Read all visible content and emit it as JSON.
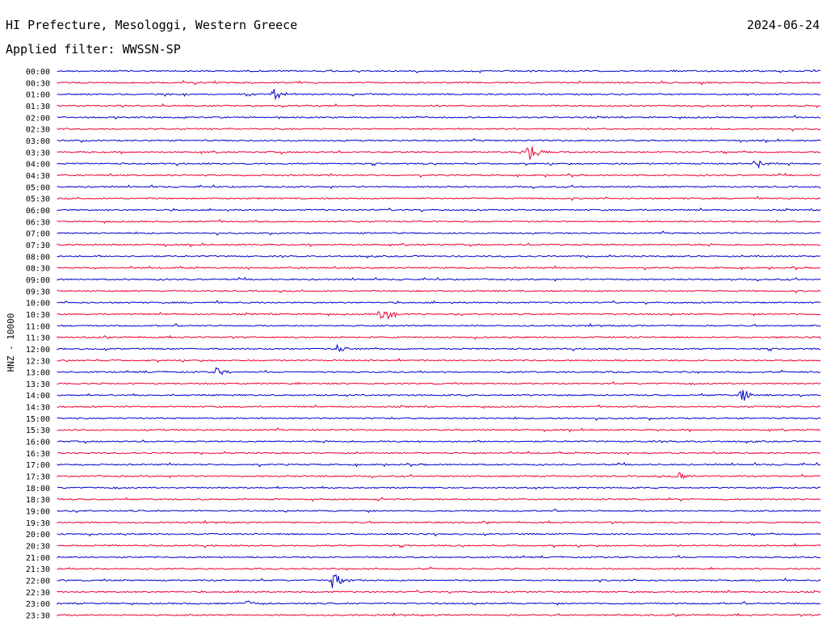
{
  "header": {
    "station": "HI Prefecture, Mesologgi, Western Greece",
    "date": "2024-06-24",
    "filter": "Applied filter: WWSSN-SP"
  },
  "chart_data": {
    "type": "line",
    "title": "HI Prefecture, Mesologgi, Western Greece",
    "subtitle": "Applied filter: WWSSN-SP",
    "ylabel": "HNZ - 10000",
    "series_colors": [
      "#0000cc",
      "#ee0033"
    ],
    "categories": [
      "00:00",
      "00:30",
      "01:00",
      "01:30",
      "02:00",
      "02:30",
      "03:00",
      "03:30",
      "04:00",
      "04:30",
      "05:00",
      "05:30",
      "06:00",
      "06:30",
      "07:00",
      "07:30",
      "08:00",
      "08:30",
      "09:00",
      "09:30",
      "10:00",
      "10:30",
      "11:00",
      "11:30",
      "12:00",
      "12:30",
      "13:00",
      "13:30",
      "14:00",
      "14:30",
      "15:00",
      "15:30",
      "16:00",
      "16:30",
      "17:00",
      "17:30",
      "18:00",
      "18:30",
      "19:00",
      "19:30",
      "20:00",
      "20:30",
      "21:00",
      "21:30",
      "22:00",
      "22:30",
      "23:00",
      "23:30"
    ],
    "events": [
      {
        "row": "01:00",
        "minute": 8.5,
        "amplitude": 9
      },
      {
        "row": "03:30",
        "minute": 18.5,
        "amplitude": 14
      },
      {
        "row": "04:00",
        "minute": 27.4,
        "amplitude": 9
      },
      {
        "row": "10:30",
        "minute": 12.7,
        "amplitude": 15
      },
      {
        "row": "12:00",
        "minute": 11.0,
        "amplitude": 6
      },
      {
        "row": "13:00",
        "minute": 6.2,
        "amplitude": 6
      },
      {
        "row": "14:00",
        "minute": 26.9,
        "amplitude": 10
      },
      {
        "row": "17:30",
        "minute": 24.4,
        "amplitude": 7
      },
      {
        "row": "22:00",
        "minute": 10.8,
        "amplitude": 11
      },
      {
        "row": "23:00",
        "minute": 7.5,
        "amplitude": 5
      }
    ],
    "grid": false,
    "legend": "none"
  }
}
